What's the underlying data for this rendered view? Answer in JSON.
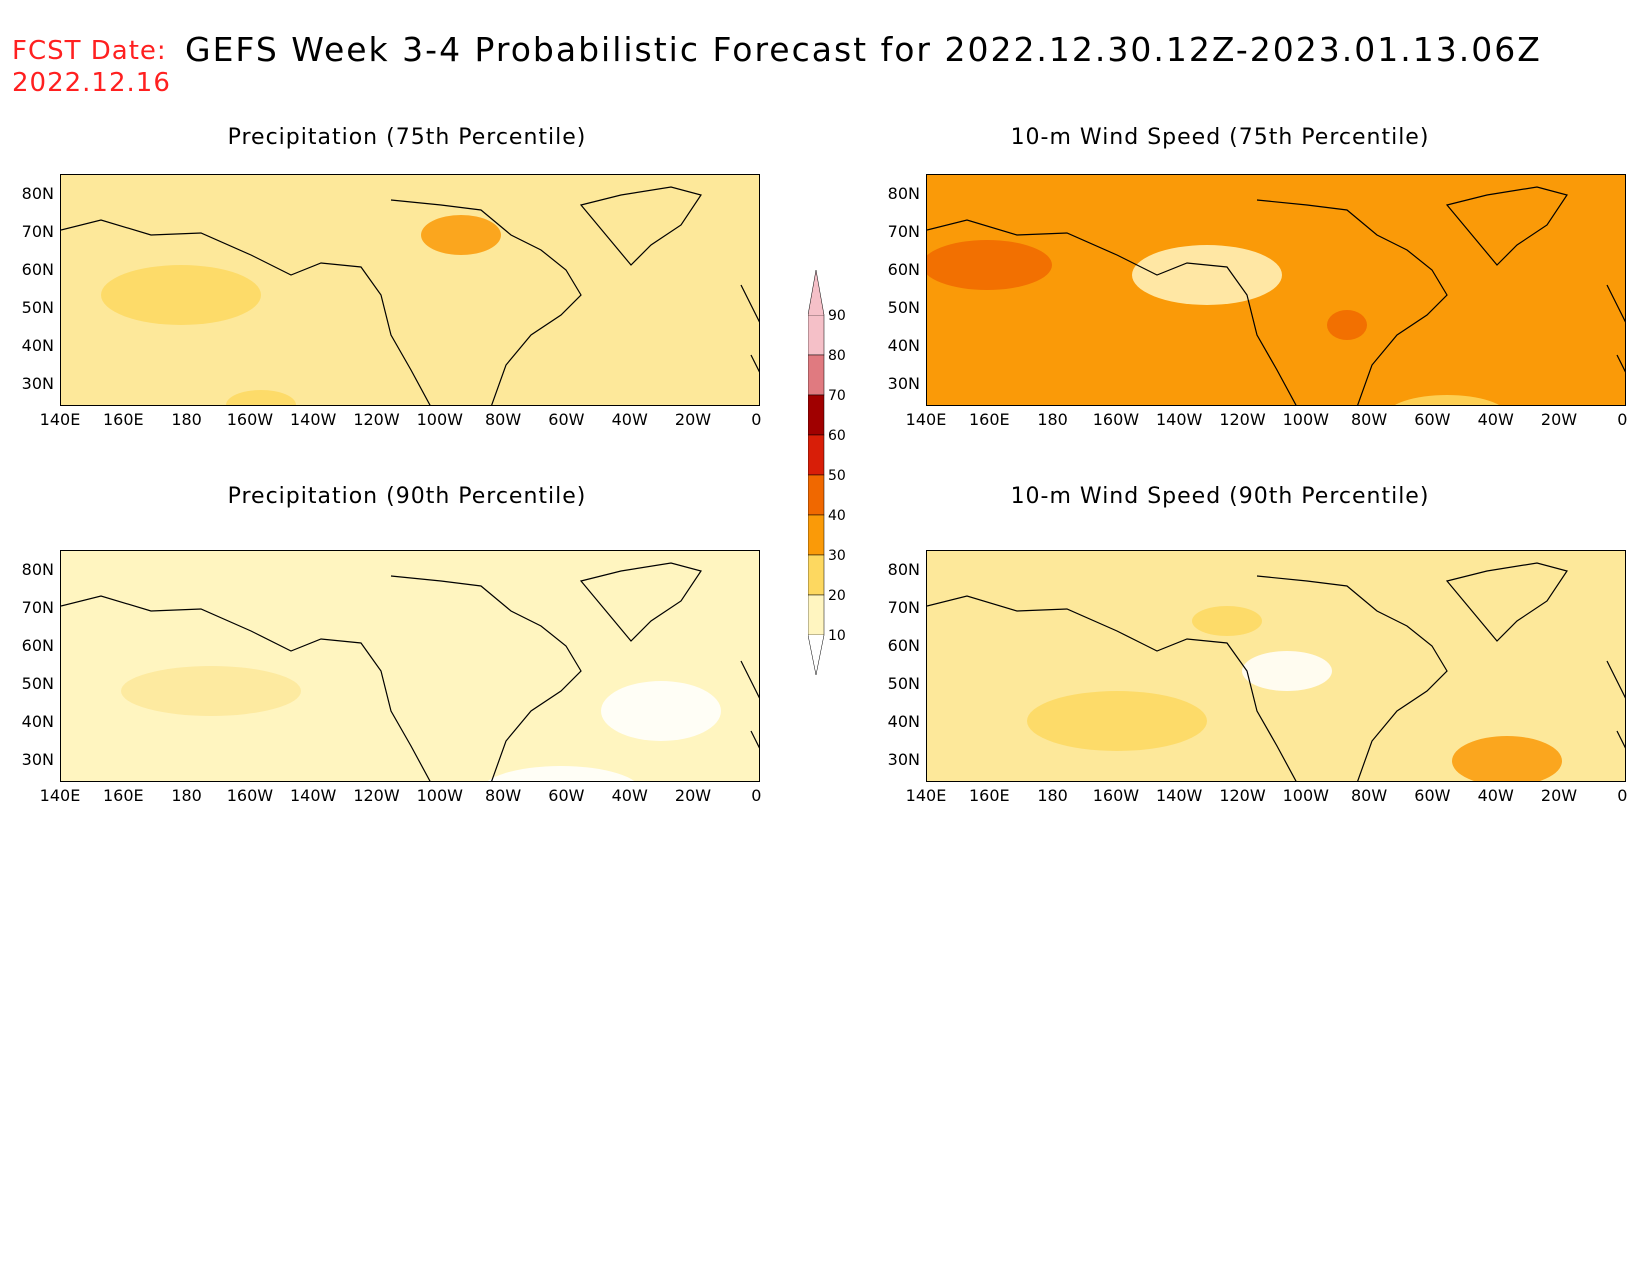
{
  "header": {
    "fcst_label": "FCST Date:",
    "fcst_date": "2022.12.16",
    "title": "GEFS Week 3-4 Probabilistic Forecast for 2022.12.30.12Z-2023.01.13.06Z"
  },
  "panels": [
    {
      "title": "Precipitation (75th Percentile)",
      "base_color": "#fde89a",
      "fill_level": 20
    },
    {
      "title": "10-m Wind Speed (75th Percentile)",
      "base_color": "#fa9a08",
      "fill_level": 40
    },
    {
      "title": "Precipitation (90th Percentile)",
      "base_color": "#fff5c0",
      "fill_level": 10
    },
    {
      "title": "10-m Wind Speed (90th Percentile)",
      "base_color": "#fde89a",
      "fill_level": 20
    }
  ],
  "axes": {
    "lat_labels": [
      "80N",
      "70N",
      "60N",
      "50N",
      "40N",
      "30N"
    ],
    "lon_labels": [
      "140E",
      "160E",
      "180",
      "160W",
      "140W",
      "120W",
      "100W",
      "80W",
      "60W",
      "40W",
      "20W",
      "0"
    ]
  },
  "colorbar": {
    "levels": [
      "90",
      "80",
      "70",
      "60",
      "50",
      "40",
      "30",
      "20",
      "10"
    ],
    "colors": [
      "#f5c0c8",
      "#e07a80",
      "#a00000",
      "#d81e08",
      "#f06800",
      "#fa9a08",
      "#fdd860",
      "#fff5c0"
    ]
  }
}
